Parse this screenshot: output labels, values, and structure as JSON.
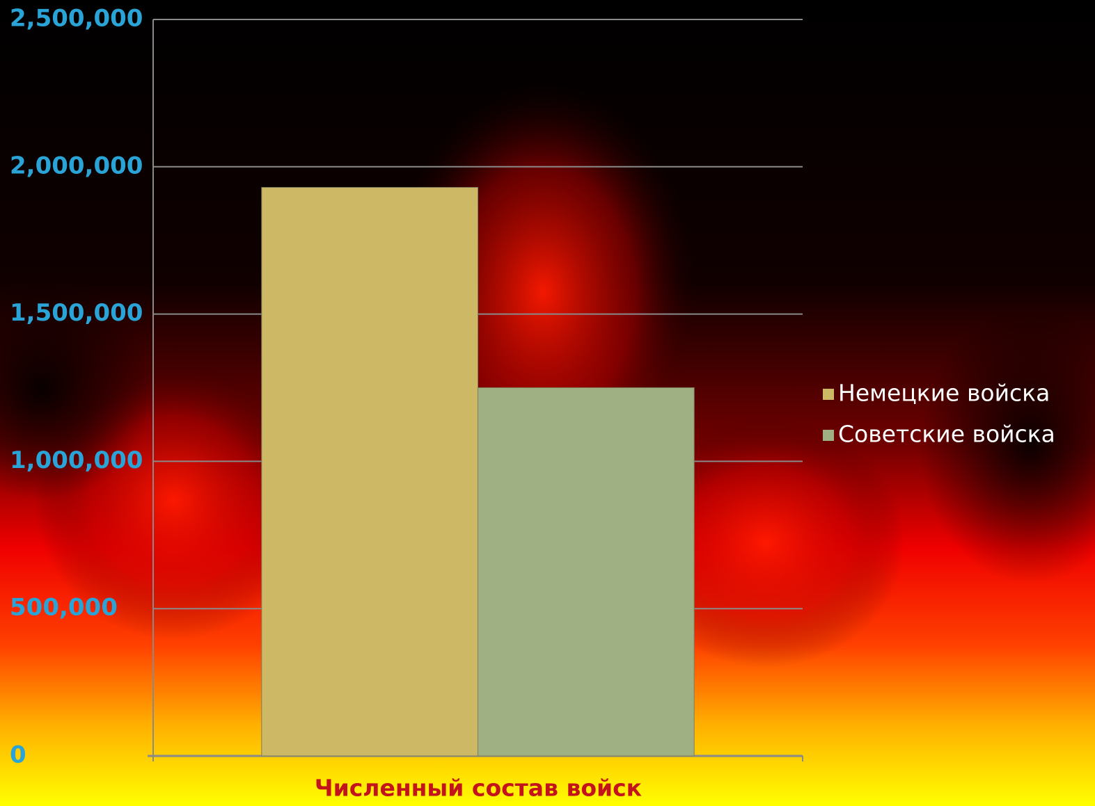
{
  "chart_data": {
    "type": "bar",
    "categories": [
      "Численный состав войск"
    ],
    "series": [
      {
        "name": "Немецкие войска",
        "color": "#cdb866",
        "values": [
          1930000
        ]
      },
      {
        "name": "Советские войска",
        "color": "#9fb083",
        "values": [
          1250000
        ]
      }
    ],
    "ylim": [
      0,
      2500000
    ],
    "yticks": [
      0,
      {
        "value": 500000,
        "label": "500,000"
      },
      {
        "value": 1000000,
        "label": "1,000,000"
      },
      {
        "value": 1500000,
        "label": "1,500,000"
      },
      {
        "value": 2000000,
        "label": "2,000,000"
      },
      {
        "value": 2500000,
        "label": "2,500,000"
      }
    ],
    "grid": true,
    "legend": "right"
  }
}
